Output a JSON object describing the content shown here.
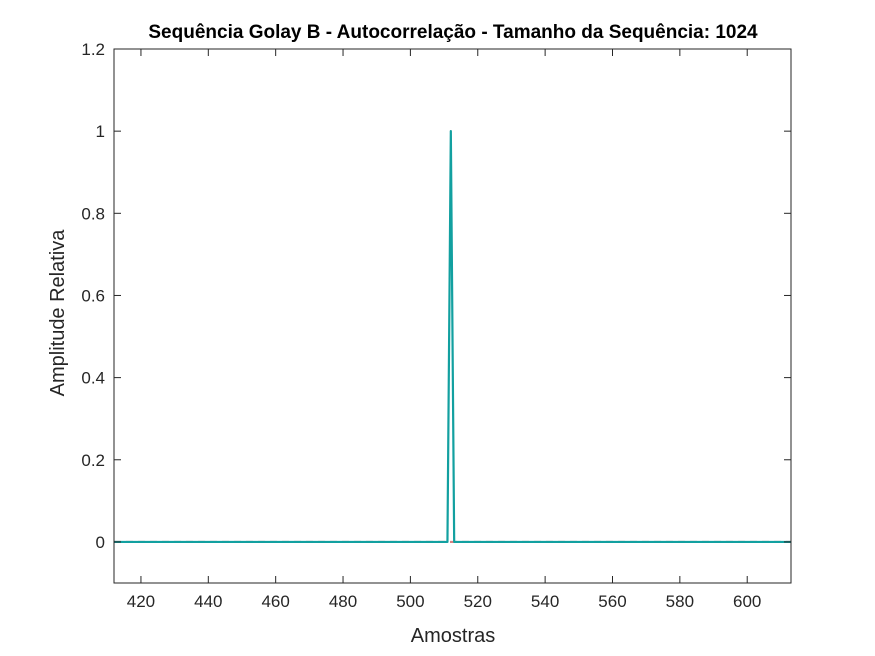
{
  "chart_data": {
    "type": "line",
    "title": "Sequência Golay B - Autocorrelação - Tamanho da Sequência: 1024",
    "xlabel": "Amostras",
    "ylabel": "Amplitude Relativa",
    "xlim": [
      412,
      613
    ],
    "ylim": [
      -0.1,
      1.2
    ],
    "xticks": [
      420,
      440,
      460,
      480,
      500,
      520,
      540,
      560,
      580,
      600
    ],
    "yticks": [
      0,
      0.2,
      0.4,
      0.6,
      0.8,
      1,
      1.2
    ],
    "ytick_labels": [
      "0",
      "0.2",
      "0.4",
      "0.6",
      "0.8",
      "1",
      "1.2"
    ],
    "grid": false,
    "series": [
      {
        "color": "#d98080",
        "style": "dashed",
        "x": [
          412,
          613
        ],
        "y": [
          0,
          0
        ]
      },
      {
        "color": "#12a0a0",
        "style": "solid",
        "x": [
          412,
          511,
          512,
          513,
          613
        ],
        "y": [
          0,
          0,
          1,
          0,
          0
        ]
      }
    ]
  }
}
